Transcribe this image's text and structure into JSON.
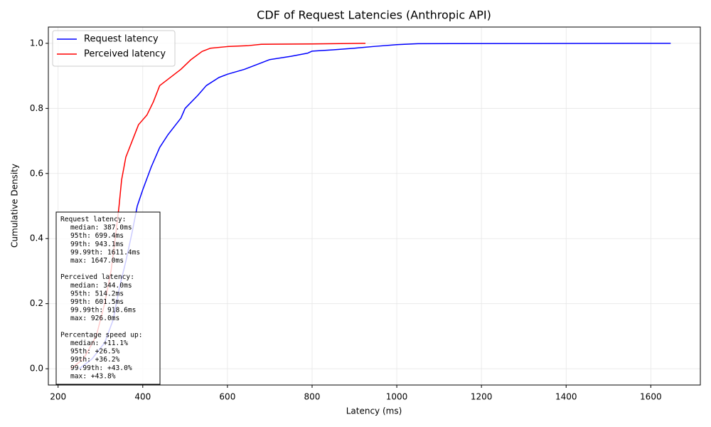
{
  "chart_data": {
    "type": "line",
    "title": "CDF of Request Latencies (Anthropic API)",
    "x_label": "Latency (ms)",
    "y_label": "Cumulative Density",
    "xlim": [
      177,
      1717
    ],
    "ylim": [
      -0.05,
      1.05
    ],
    "xticks": [
      200,
      400,
      600,
      800,
      1000,
      1200,
      1400,
      1600
    ],
    "yticks": [
      {
        "value": 0,
        "label": "0.0"
      },
      {
        "value": 0.2,
        "label": "0.2"
      },
      {
        "value": 0.4,
        "label": "0.4"
      },
      {
        "value": 0.6,
        "label": "0.6"
      },
      {
        "value": 0.8,
        "label": "0.8"
      },
      {
        "value": 1,
        "label": "1.0"
      }
    ],
    "grid": true,
    "legend": "upper left",
    "series": [
      {
        "name": "Request latency",
        "color": "#0000ff",
        "x": [
          250,
          280,
          310,
          330,
          345,
          360,
          375,
          387,
          400,
          420,
          440,
          460,
          490,
          500,
          530,
          550,
          580,
          600,
          640,
          680,
          700,
          750,
          790,
          800,
          850,
          900,
          943,
          1000,
          1050,
          1647
        ],
        "values": [
          0.0,
          0.03,
          0.08,
          0.15,
          0.25,
          0.33,
          0.42,
          0.5,
          0.55,
          0.62,
          0.68,
          0.72,
          0.77,
          0.8,
          0.84,
          0.87,
          0.895,
          0.905,
          0.92,
          0.94,
          0.95,
          0.96,
          0.97,
          0.976,
          0.98,
          0.985,
          0.99,
          0.996,
          0.999,
          1.0
        ]
      },
      {
        "name": "Perceived latency",
        "color": "#ff0000",
        "x": [
          230,
          260,
          290,
          310,
          325,
          335,
          344,
          350,
          360,
          375,
          390,
          410,
          425,
          440,
          460,
          490,
          514,
          540,
          560,
          600,
          650,
          680,
          800,
          926
        ],
        "values": [
          0.0,
          0.03,
          0.1,
          0.2,
          0.3,
          0.4,
          0.5,
          0.58,
          0.65,
          0.7,
          0.75,
          0.78,
          0.82,
          0.87,
          0.89,
          0.92,
          0.95,
          0.975,
          0.985,
          0.99,
          0.993,
          0.997,
          0.998,
          1.0
        ]
      }
    ],
    "annotation": [
      {
        "title": "Request latency:",
        "lines": [
          "median: 387.0ms",
          "95th: 699.4ms",
          "99th: 943.1ms",
          "99.99th: 1611.4ms",
          "max: 1647.0ms"
        ]
      },
      {
        "title": "Perceived latency:",
        "lines": [
          "median: 344.0ms",
          "95th: 514.2ms",
          "99th: 601.5ms",
          "99.99th: 918.6ms",
          "max: 926.0ms"
        ]
      },
      {
        "title": "Percentage speed up:",
        "lines": [
          "median: +11.1%",
          "95th: +26.5%",
          "99th: +36.2%",
          "99.99th: +43.0%",
          "max: +43.8%"
        ]
      }
    ]
  }
}
